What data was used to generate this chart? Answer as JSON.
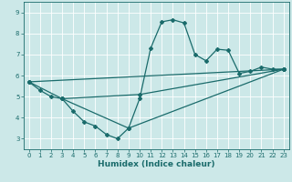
{
  "xlabel": "Humidex (Indice chaleur)",
  "bg_color": "#cce8e8",
  "grid_color": "#ffffff",
  "line_color": "#1a6b6b",
  "xlim": [
    -0.5,
    23.5
  ],
  "ylim": [
    2.5,
    9.5
  ],
  "yticks": [
    3,
    4,
    5,
    6,
    7,
    8,
    9
  ],
  "xticks": [
    0,
    1,
    2,
    3,
    4,
    5,
    6,
    7,
    8,
    9,
    10,
    11,
    12,
    13,
    14,
    15,
    16,
    17,
    18,
    19,
    20,
    21,
    22,
    23
  ],
  "line1_x": [
    0,
    1,
    2,
    3,
    4,
    5,
    6,
    7,
    8,
    9,
    10,
    11,
    12,
    13,
    14,
    15,
    16,
    17,
    18,
    19,
    20,
    21,
    22,
    23
  ],
  "line1_y": [
    5.7,
    5.3,
    5.0,
    4.9,
    4.3,
    3.8,
    3.6,
    3.2,
    3.0,
    3.5,
    4.9,
    7.3,
    8.55,
    8.65,
    8.5,
    7.0,
    6.7,
    7.25,
    7.2,
    6.1,
    6.2,
    6.4,
    6.3,
    6.3
  ],
  "line2_x": [
    0,
    3,
    10,
    23
  ],
  "line2_y": [
    5.7,
    4.9,
    5.1,
    6.3
  ],
  "line3_x": [
    3,
    9,
    23
  ],
  "line3_y": [
    4.9,
    3.5,
    6.3
  ],
  "line4_x": [
    0,
    23
  ],
  "line4_y": [
    5.7,
    6.3
  ],
  "marker": "D",
  "markersize": 2,
  "linewidth": 0.9
}
